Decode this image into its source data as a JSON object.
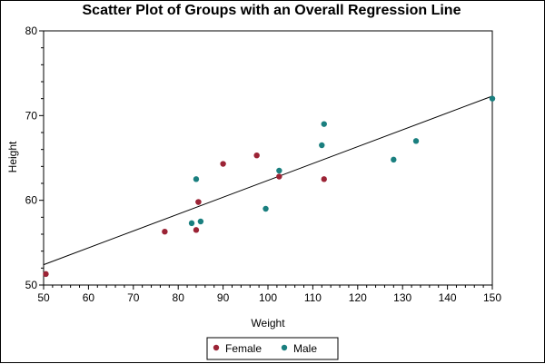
{
  "chart_data": {
    "type": "scatter",
    "title": "Scatter Plot of Groups with an Overall Regression Line",
    "xlabel": "Weight",
    "ylabel": "Height",
    "xlim": [
      50,
      150
    ],
    "ylim": [
      50,
      80
    ],
    "xticks": [
      50,
      60,
      70,
      80,
      90,
      100,
      110,
      120,
      130,
      140,
      150
    ],
    "yticks": [
      50,
      60,
      70,
      80
    ],
    "grid": false,
    "legend_position": "bottom",
    "series": [
      {
        "name": "Female",
        "color": "#9b2335",
        "marker": "filled-circle",
        "x": [
          50.5,
          77,
          84,
          84.5,
          84.5,
          90,
          97.5,
          102.5,
          112.5
        ],
        "y": [
          51.3,
          56.3,
          56.5,
          59.8,
          59.8,
          64.3,
          65.3,
          62.8,
          62.5
        ]
      },
      {
        "name": "Male",
        "color": "#1a7f7f",
        "marker": "filled-circle",
        "x": [
          83,
          84,
          85,
          99.5,
          102.5,
          112,
          112.5,
          128,
          133,
          150
        ],
        "y": [
          57.3,
          62.5,
          57.5,
          59,
          63.5,
          66.5,
          69,
          64.8,
          67,
          72
        ]
      }
    ],
    "regression_line": {
      "x": [
        50,
        150
      ],
      "y": [
        52.4,
        72.3
      ],
      "color": "#000000"
    }
  }
}
